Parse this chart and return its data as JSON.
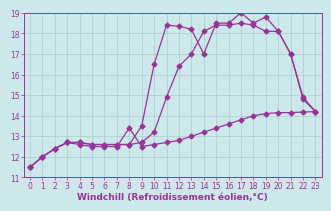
{
  "bg_color": "#cce8ea",
  "grid_color": "#aacccc",
  "line_color": "#993399",
  "marker": "D",
  "markersize": 2.5,
  "linewidth": 0.9,
  "xlabel": "Windchill (Refroidissement éolien,°C)",
  "xlabel_fontsize": 6.5,
  "tick_fontsize": 5.5,
  "xlim": [
    -0.5,
    23.5
  ],
  "ylim": [
    11,
    19
  ],
  "yticks": [
    11,
    12,
    13,
    14,
    15,
    16,
    17,
    18,
    19
  ],
  "xticks": [
    0,
    1,
    2,
    3,
    4,
    5,
    6,
    7,
    8,
    9,
    10,
    11,
    12,
    13,
    14,
    15,
    16,
    17,
    18,
    19,
    20,
    21,
    22,
    23
  ],
  "series1_x": [
    0,
    1,
    2,
    3,
    4,
    5,
    6,
    7,
    8,
    9,
    10,
    11,
    12,
    13,
    14,
    15,
    16,
    17,
    18,
    19,
    20,
    21,
    22,
    23
  ],
  "series1_y": [
    11.5,
    12.0,
    12.4,
    12.7,
    12.7,
    12.6,
    12.6,
    12.6,
    12.6,
    12.7,
    13.2,
    14.9,
    16.4,
    17.0,
    18.1,
    18.4,
    18.4,
    18.5,
    18.4,
    18.1,
    18.1,
    17.0,
    14.9,
    14.2
  ],
  "series2_x": [
    0,
    1,
    2,
    3,
    4,
    5,
    6,
    7,
    8,
    9,
    10,
    11,
    12,
    13,
    14,
    15,
    16,
    17,
    18,
    19,
    20,
    21,
    22,
    23
  ],
  "series2_y": [
    11.5,
    12.0,
    12.4,
    12.7,
    12.7,
    12.6,
    12.6,
    12.6,
    12.6,
    13.5,
    16.5,
    18.4,
    18.35,
    18.2,
    17.0,
    18.5,
    18.5,
    19.0,
    18.5,
    18.8,
    18.1,
    17.0,
    14.8,
    14.2
  ],
  "series3_x": [
    0,
    1,
    2,
    3,
    4,
    5,
    6,
    7,
    8,
    9,
    10,
    11,
    12,
    13,
    14,
    15,
    16,
    17,
    18,
    19,
    20,
    21,
    22,
    23
  ],
  "series3_y": [
    11.5,
    12.0,
    12.4,
    12.7,
    12.6,
    12.5,
    12.5,
    12.5,
    13.4,
    12.5,
    12.6,
    12.7,
    12.8,
    13.0,
    13.2,
    13.4,
    13.6,
    13.8,
    14.0,
    14.1,
    14.15,
    14.15,
    14.18,
    14.2
  ]
}
